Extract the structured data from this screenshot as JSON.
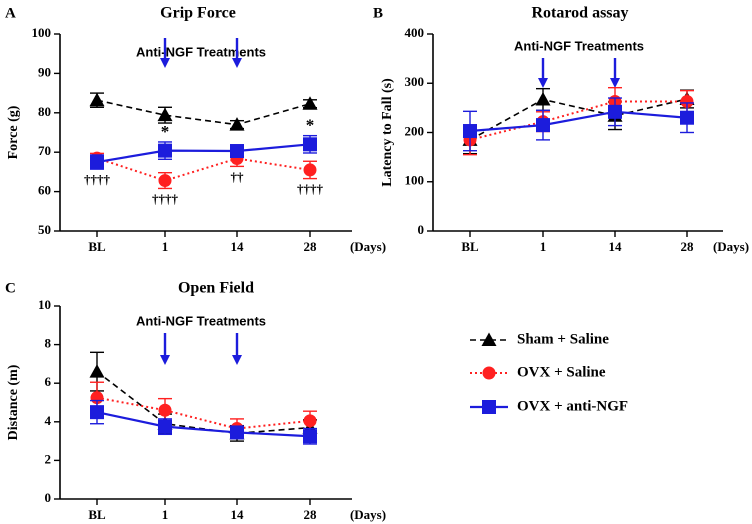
{
  "figure": {
    "days_label": "(Days)",
    "treatment_label": "Anti-NGF Treatments"
  },
  "colors": {
    "sham": "#000000",
    "ovx_saline": "#ff2020",
    "ovx_antingf": "#1c1cdc",
    "annotation": "#1c1cdc"
  },
  "legend": [
    {
      "key": "sham",
      "label": "Sham + Saline"
    },
    {
      "key": "ovx_saline",
      "label": "OVX + Saline"
    },
    {
      "key": "ovx_antingf",
      "label": "OVX + anti-NGF"
    }
  ],
  "chart_data": [
    {
      "panel": "A",
      "type": "line",
      "title": "Grip Force",
      "xlabel": "",
      "ylabel": "Force (g)",
      "categories": [
        "BL",
        "1",
        "14",
        "28"
      ],
      "ylim": [
        50,
        100
      ],
      "yticks": [
        50,
        60,
        70,
        80,
        90,
        100
      ],
      "treatment_arrows_at": [
        "1",
        "14"
      ],
      "series": [
        {
          "key": "sham",
          "name": "Sham + Saline",
          "values": [
            83.2,
            79.4,
            77.0,
            82.3
          ],
          "errors": [
            1.8,
            2.0,
            1.0,
            1.0
          ]
        },
        {
          "key": "ovx_saline",
          "name": "OVX + Saline",
          "values": [
            68.5,
            62.8,
            68.4,
            65.5
          ],
          "errors": [
            1.2,
            2.0,
            2.0,
            2.2
          ]
        },
        {
          "key": "ovx_antingf",
          "name": "OVX + anti-NGF",
          "values": [
            67.5,
            70.4,
            70.3,
            72.0
          ],
          "errors": [
            1.8,
            2.2,
            1.4,
            2.2
          ]
        }
      ],
      "annotations": [
        {
          "category": "BL",
          "text": "††††",
          "position": "below"
        },
        {
          "category": "1",
          "text": "*",
          "position": "above"
        },
        {
          "category": "1",
          "text": "††††",
          "position": "below"
        },
        {
          "category": "14",
          "text": "††",
          "position": "below"
        },
        {
          "category": "28",
          "text": "*",
          "position": "above"
        },
        {
          "category": "28",
          "text": "††††",
          "position": "below"
        }
      ]
    },
    {
      "panel": "B",
      "type": "line",
      "title": "Rotarod assay",
      "xlabel": "",
      "ylabel": "Latency to Fall (s)",
      "categories": [
        "BL",
        "1",
        "14",
        "28"
      ],
      "ylim": [
        0,
        400
      ],
      "yticks": [
        0,
        100,
        200,
        300,
        400
      ],
      "treatment_arrows_at": [
        "1",
        "14"
      ],
      "series": [
        {
          "key": "sham",
          "name": "Sham + Saline",
          "values": [
            185,
            267,
            234,
            268
          ],
          "errors": [
            28,
            22,
            28,
            18
          ]
        },
        {
          "key": "ovx_saline",
          "name": "OVX + Saline",
          "values": [
            185,
            222,
            263,
            263
          ],
          "errors": [
            30,
            20,
            28,
            22
          ]
        },
        {
          "key": "ovx_antingf",
          "name": "OVX + anti-NGF",
          "values": [
            203,
            215,
            242,
            230
          ],
          "errors": [
            40,
            30,
            28,
            30
          ]
        }
      ],
      "annotations": []
    },
    {
      "panel": "C",
      "type": "line",
      "title": "Open Field",
      "xlabel": "",
      "ylabel": "Distance (m)",
      "categories": [
        "BL",
        "1",
        "14",
        "28"
      ],
      "ylim": [
        0,
        10
      ],
      "yticks": [
        0,
        2,
        4,
        6,
        8,
        10
      ],
      "treatment_arrows_at": [
        "1",
        "14"
      ],
      "series": [
        {
          "key": "sham",
          "name": "Sham + Saline",
          "values": [
            6.6,
            3.9,
            3.4,
            3.7
          ],
          "errors": [
            1.0,
            0.5,
            0.4,
            0.4
          ]
        },
        {
          "key": "ovx_saline",
          "name": "OVX + Saline",
          "values": [
            5.25,
            4.6,
            3.65,
            4.05
          ],
          "errors": [
            0.8,
            0.6,
            0.5,
            0.5
          ]
        },
        {
          "key": "ovx_antingf",
          "name": "OVX + anti-NGF",
          "values": [
            4.5,
            3.75,
            3.45,
            3.25
          ],
          "errors": [
            0.6,
            0.4,
            0.3,
            0.4
          ]
        }
      ],
      "annotations": []
    }
  ]
}
